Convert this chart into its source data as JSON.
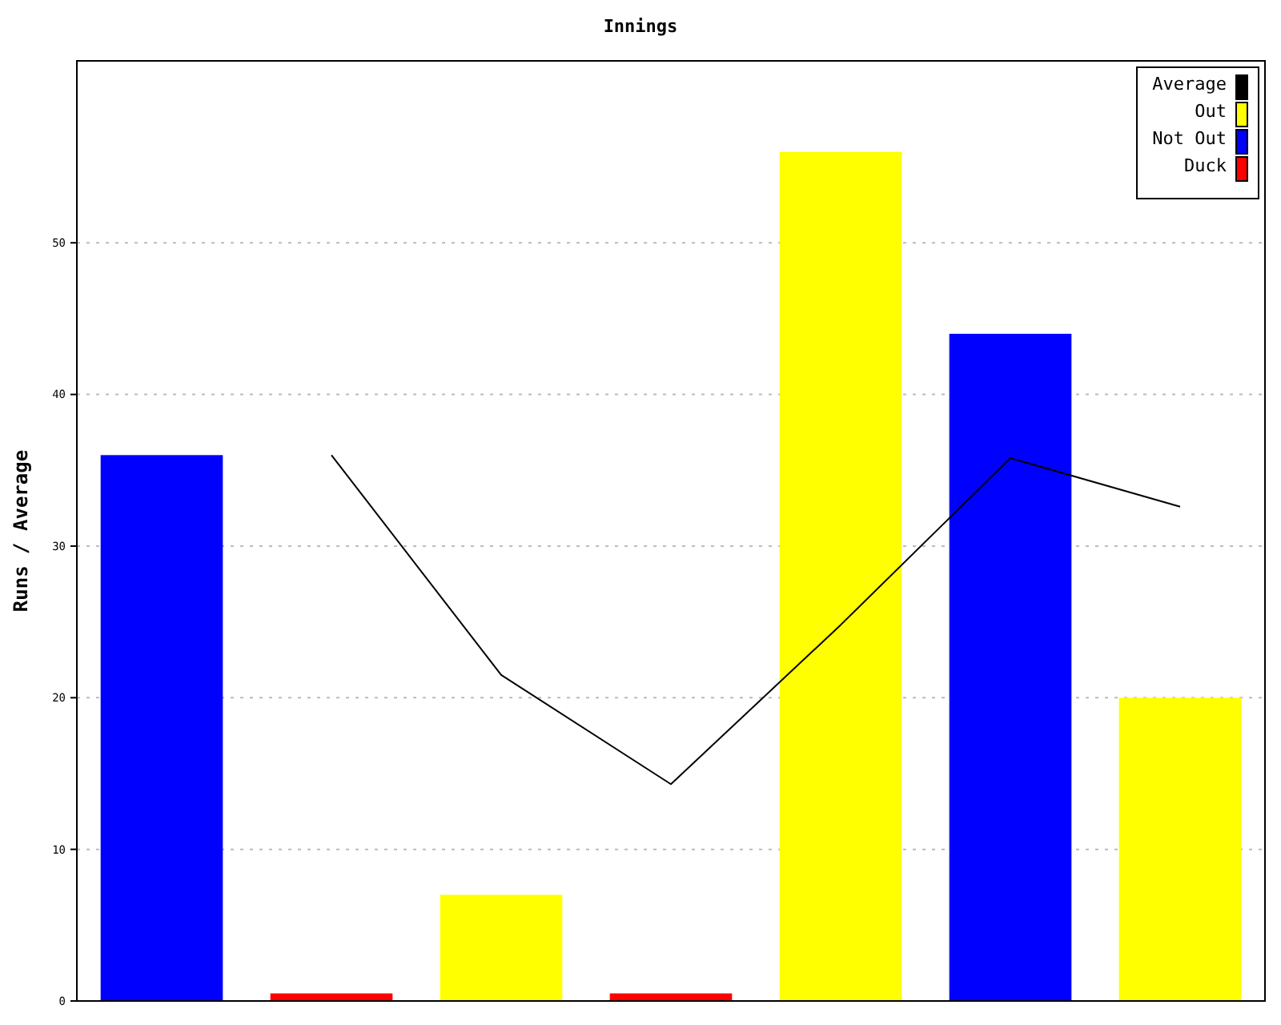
{
  "chart_data": {
    "type": "bar",
    "title": "Innings",
    "ylabel": "Runs / Average",
    "categories": [
      null,
      null,
      null,
      null,
      null,
      null,
      null
    ],
    "series": [
      {
        "name": "Average",
        "type": "line",
        "color": "#000000",
        "values": [
          null,
          36,
          21.5,
          14.3,
          24.8,
          35.8,
          32.6
        ]
      },
      {
        "name": "Out",
        "color": "#ffff00",
        "values": [
          null,
          null,
          7,
          null,
          56,
          null,
          20
        ]
      },
      {
        "name": "Not Out",
        "color": "#0000ff",
        "values": [
          36,
          null,
          null,
          null,
          null,
          44,
          null
        ]
      },
      {
        "name": "Duck",
        "color": "#ff0000",
        "values": [
          null,
          0.5,
          null,
          0.5,
          null,
          null,
          null
        ]
      }
    ],
    "ylim": [
      0,
      62
    ],
    "yticks": [
      0,
      10,
      20,
      30,
      40,
      50
    ],
    "grid": "y",
    "legend": "top right"
  }
}
